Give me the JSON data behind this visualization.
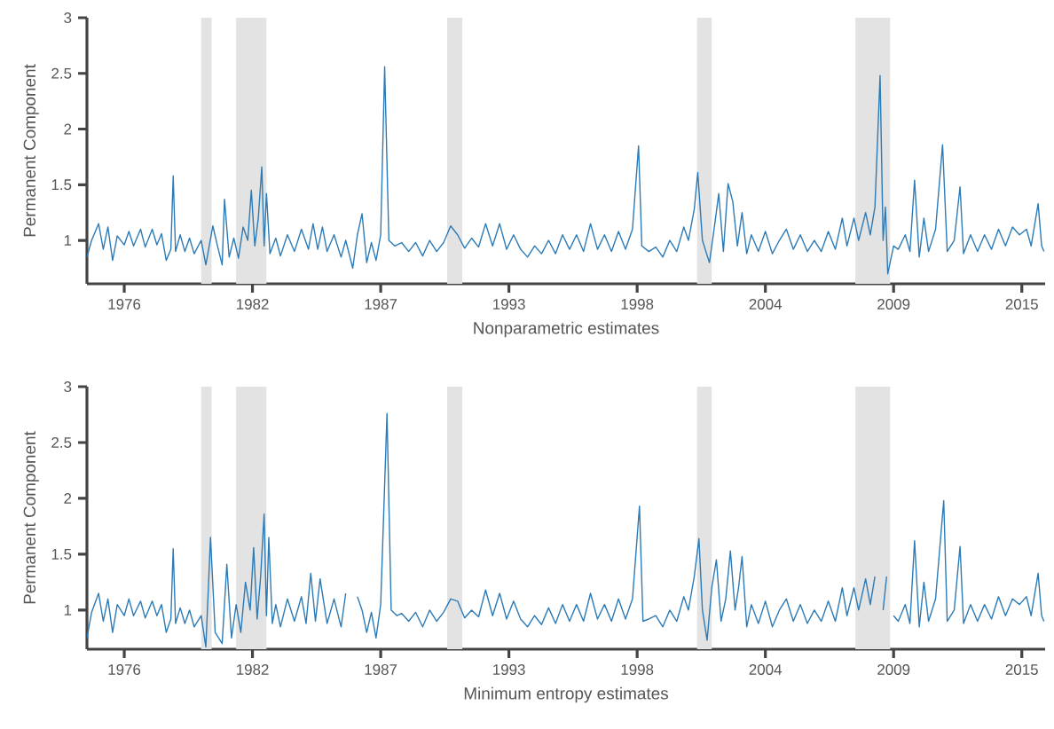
{
  "chart_data": [
    {
      "type": "line",
      "xlabel": "Nonparametric estimates",
      "ylabel": "Permanent Component",
      "xlim": [
        1974.4,
        2015.5
      ],
      "ylim": [
        0.61,
        3
      ],
      "xticks": [
        {
          "value": 1976,
          "label": "1976"
        },
        {
          "value": 1981.5,
          "label": "1982"
        },
        {
          "value": 1987,
          "label": "1987"
        },
        {
          "value": 1992.5,
          "label": "1993"
        },
        {
          "value": 1998,
          "label": "1998"
        },
        {
          "value": 2003.5,
          "label": "2004"
        },
        {
          "value": 2009,
          "label": "2009"
        },
        {
          "value": 2014.5,
          "label": "2015"
        }
      ],
      "yticks": [
        1,
        1.5,
        2,
        2.5,
        3
      ],
      "bands": [
        {
          "axis": "x",
          "from": 1979.3,
          "to": 1979.75,
          "color": "#e3e3e3"
        },
        {
          "axis": "x",
          "from": 1980.8,
          "to": 1982.1,
          "color": "#e3e3e3"
        },
        {
          "axis": "x",
          "from": 1989.85,
          "to": 1990.5,
          "color": "#e3e3e3"
        },
        {
          "axis": "x",
          "from": 2000.57,
          "to": 2001.2,
          "color": "#e3e3e3"
        },
        {
          "axis": "x",
          "from": 2007.36,
          "to": 2008.85,
          "color": "#e3e3e3"
        }
      ],
      "x": [
        1974.4,
        1974.6,
        1974.9,
        1975.1,
        1975.3,
        1975.5,
        1975.7,
        1976.0,
        1976.2,
        1976.4,
        1976.7,
        1976.9,
        1977.2,
        1977.4,
        1977.6,
        1977.8,
        1978.0,
        1978.1,
        1978.2,
        1978.4,
        1978.6,
        1978.8,
        1979.0,
        1979.3,
        1979.5,
        1979.8,
        1980.0,
        1980.2,
        1980.3,
        1980.5,
        1980.7,
        1980.9,
        1981.1,
        1981.3,
        1981.45,
        1981.6,
        1981.75,
        1981.9,
        1982.0,
        1982.1,
        1982.25,
        1982.5,
        1982.7,
        1983.0,
        1983.3,
        1983.6,
        1983.9,
        1984.1,
        1984.3,
        1984.5,
        1984.7,
        1985.0,
        1985.3,
        1985.5,
        1985.8,
        1986.0,
        1986.2,
        1986.4,
        1986.6,
        1986.8,
        1987.0,
        1987.17,
        1987.35,
        1987.6,
        1987.9,
        1988.2,
        1988.5,
        1988.8,
        1989.1,
        1989.4,
        1989.7,
        1990.0,
        1990.3,
        1990.6,
        1990.9,
        1991.2,
        1991.5,
        1991.8,
        1992.1,
        1992.4,
        1992.7,
        1993.0,
        1993.3,
        1993.6,
        1993.9,
        1994.2,
        1994.5,
        1994.8,
        1995.1,
        1995.4,
        1995.7,
        1996.0,
        1996.3,
        1996.6,
        1996.9,
        1997.2,
        1997.5,
        1997.8,
        1998.06,
        1998.2,
        1998.5,
        1998.8,
        1999.1,
        1999.4,
        1999.7,
        2000.0,
        2000.2,
        2000.45,
        2000.6,
        2000.8,
        2001.1,
        2001.3,
        2001.5,
        2001.7,
        2001.9,
        2002.1,
        2002.3,
        2002.5,
        2002.7,
        2002.9,
        2003.2,
        2003.5,
        2003.8,
        2004.1,
        2004.4,
        2004.7,
        2005.0,
        2005.3,
        2005.6,
        2005.9,
        2006.2,
        2006.5,
        2006.8,
        2007.0,
        2007.3,
        2007.5,
        2007.8,
        2008.0,
        2008.2,
        2008.42,
        2008.55,
        2008.65,
        2008.75,
        2009.0,
        2009.2,
        2009.5,
        2009.7,
        2009.9,
        2010.1,
        2010.3,
        2010.5,
        2010.8,
        2011.1,
        2011.3,
        2011.6,
        2011.85,
        2012.0,
        2012.3,
        2012.6,
        2012.9,
        2013.2,
        2013.5,
        2013.8,
        2014.1,
        2014.4,
        2014.7,
        2014.9,
        2015.2,
        2015.35,
        2015.45
      ],
      "series": [
        {
          "color": "#2c7bb6",
          "values": [
            0.85,
            1.0,
            1.15,
            0.92,
            1.12,
            0.82,
            1.04,
            0.96,
            1.08,
            0.95,
            1.1,
            0.94,
            1.1,
            0.96,
            1.06,
            0.82,
            0.92,
            1.58,
            0.9,
            1.05,
            0.9,
            1.02,
            0.88,
            1.0,
            0.78,
            1.13,
            0.95,
            0.78,
            1.37,
            0.85,
            1.02,
            0.84,
            1.12,
            1.0,
            1.45,
            0.95,
            1.2,
            1.66,
            0.95,
            1.42,
            0.88,
            1.02,
            0.86,
            1.05,
            0.9,
            1.1,
            0.92,
            1.15,
            0.92,
            1.12,
            0.9,
            1.05,
            0.85,
            1.0,
            0.75,
            1.05,
            1.24,
            0.8,
            0.98,
            0.82,
            1.05,
            2.56,
            1.0,
            0.95,
            0.98,
            0.9,
            0.98,
            0.86,
            1.0,
            0.9,
            0.98,
            1.13,
            1.05,
            0.93,
            1.02,
            0.94,
            1.15,
            0.95,
            1.15,
            0.92,
            1.05,
            0.92,
            0.85,
            0.95,
            0.88,
            1.0,
            0.88,
            1.05,
            0.92,
            1.05,
            0.9,
            1.15,
            0.92,
            1.05,
            0.9,
            1.08,
            0.92,
            1.1,
            1.85,
            0.95,
            0.9,
            0.94,
            0.85,
            1.0,
            0.9,
            1.12,
            1.0,
            1.28,
            1.61,
            1.0,
            0.8,
            1.1,
            1.42,
            0.9,
            1.51,
            1.35,
            0.95,
            1.25,
            0.88,
            1.05,
            0.9,
            1.08,
            0.88,
            1.0,
            1.1,
            0.92,
            1.05,
            0.9,
            1.0,
            0.9,
            1.08,
            0.92,
            1.2,
            0.95,
            1.2,
            1.0,
            1.25,
            1.05,
            1.3,
            2.48,
            1.0,
            1.3,
            0.7,
            0.95,
            0.92,
            1.05,
            0.9,
            1.54,
            0.85,
            1.2,
            0.9,
            1.1,
            1.86,
            0.9,
            1.0,
            1.48,
            0.88,
            1.05,
            0.9,
            1.05,
            0.92,
            1.1,
            0.95,
            1.12,
            1.05,
            1.1,
            0.95,
            1.33,
            0.95,
            0.9
          ]
        }
      ]
    },
    {
      "type": "line",
      "xlabel": "Minimum entropy estimates",
      "ylabel": "Permanent Component",
      "xlim": [
        1974.4,
        2015.5
      ],
      "ylim": [
        0.65,
        3
      ],
      "xticks": [
        {
          "value": 1976,
          "label": "1976"
        },
        {
          "value": 1981.5,
          "label": "1982"
        },
        {
          "value": 1987,
          "label": "1987"
        },
        {
          "value": 1992.5,
          "label": "1993"
        },
        {
          "value": 1998,
          "label": "1998"
        },
        {
          "value": 2003.5,
          "label": "2004"
        },
        {
          "value": 2009,
          "label": "2009"
        },
        {
          "value": 2014.5,
          "label": "2015"
        }
      ],
      "yticks": [
        1,
        1.5,
        2,
        2.5,
        3
      ],
      "bands": [
        {
          "axis": "x",
          "from": 1979.3,
          "to": 1979.75,
          "color": "#e3e3e3"
        },
        {
          "axis": "x",
          "from": 1980.8,
          "to": 1982.1,
          "color": "#e3e3e3"
        },
        {
          "axis": "x",
          "from": 1989.85,
          "to": 1990.5,
          "color": "#e3e3e3"
        },
        {
          "axis": "x",
          "from": 2000.57,
          "to": 2001.2,
          "color": "#e3e3e3"
        },
        {
          "axis": "x",
          "from": 2007.36,
          "to": 2008.85,
          "color": "#e3e3e3"
        }
      ],
      "x": [
        1974.4,
        1974.6,
        1974.9,
        1975.1,
        1975.3,
        1975.5,
        1975.7,
        1976.0,
        1976.2,
        1976.4,
        1976.7,
        1976.9,
        1977.2,
        1977.4,
        1977.6,
        1977.8,
        1978.0,
        1978.1,
        1978.2,
        1978.4,
        1978.6,
        1978.8,
        1979.0,
        1979.3,
        1979.5,
        1979.7,
        1979.9,
        1980.2,
        1980.4,
        1980.6,
        1980.8,
        1981.0,
        1981.2,
        1981.4,
        1981.55,
        1981.7,
        1981.85,
        1982.0,
        1982.1,
        1982.2,
        1982.35,
        1982.5,
        1982.7,
        1983.0,
        1983.3,
        1983.6,
        1983.8,
        1984.0,
        1984.2,
        1984.4,
        1984.7,
        1985.0,
        1985.3,
        1985.5,
        1985.8,
        1986.0,
        1986.2,
        1986.4,
        1986.6,
        1986.8,
        1987.0,
        1987.27,
        1987.45,
        1987.7,
        1987.9,
        1988.2,
        1988.5,
        1988.8,
        1989.1,
        1989.4,
        1989.7,
        1990.0,
        1990.3,
        1990.6,
        1990.9,
        1991.2,
        1991.5,
        1991.8,
        1992.1,
        1992.4,
        1992.7,
        1993.0,
        1993.3,
        1993.6,
        1993.9,
        1994.2,
        1994.5,
        1994.8,
        1995.1,
        1995.4,
        1995.7,
        1996.0,
        1996.3,
        1996.6,
        1996.9,
        1997.2,
        1997.5,
        1997.8,
        1998.1,
        1998.25,
        1998.5,
        1998.8,
        1999.1,
        1999.4,
        1999.7,
        2000.0,
        2000.2,
        2000.45,
        2000.65,
        2000.8,
        2001.0,
        2001.2,
        2001.4,
        2001.6,
        2001.8,
        2002.0,
        2002.2,
        2002.35,
        2002.5,
        2002.7,
        2002.9,
        2003.2,
        2003.5,
        2003.8,
        2004.1,
        2004.4,
        2004.7,
        2005.0,
        2005.3,
        2005.6,
        2005.9,
        2006.2,
        2006.5,
        2006.8,
        2007.0,
        2007.3,
        2007.5,
        2007.8,
        2008.0,
        2008.2,
        2008.42,
        2008.55,
        2008.7,
        2008.85,
        2009.0,
        2009.2,
        2009.5,
        2009.7,
        2009.9,
        2010.1,
        2010.3,
        2010.5,
        2010.8,
        2011.15,
        2011.3,
        2011.6,
        2011.85,
        2012.0,
        2012.3,
        2012.6,
        2012.9,
        2013.2,
        2013.5,
        2013.8,
        2014.1,
        2014.4,
        2014.7,
        2014.9,
        2015.2,
        2015.35,
        2015.45
      ],
      "series": [
        {
          "color": "#2c7bb6",
          "values": [
            0.75,
            0.98,
            1.15,
            0.9,
            1.1,
            0.8,
            1.05,
            0.95,
            1.1,
            0.95,
            1.08,
            0.93,
            1.08,
            0.95,
            1.05,
            0.8,
            0.92,
            1.55,
            0.88,
            1.02,
            0.88,
            1.0,
            0.85,
            0.95,
            0.67,
            1.65,
            0.8,
            0.7,
            1.41,
            0.75,
            1.05,
            0.8,
            1.25,
            1.0,
            1.56,
            0.92,
            1.3,
            1.86,
            0.95,
            1.65,
            0.88,
            1.05,
            0.85,
            1.1,
            0.9,
            1.12,
            0.88,
            1.33,
            0.9,
            1.28,
            0.88,
            1.1,
            0.85,
            1.15,
            null,
            1.12,
            1.0,
            0.8,
            0.98,
            0.75,
            1.05,
            2.76,
            1.0,
            0.95,
            0.97,
            0.9,
            0.98,
            0.85,
            1.0,
            0.9,
            0.98,
            1.1,
            1.08,
            0.93,
            1.0,
            0.94,
            1.18,
            0.95,
            1.15,
            0.92,
            1.08,
            0.92,
            0.85,
            0.95,
            0.87,
            1.02,
            0.88,
            1.05,
            0.9,
            1.05,
            0.9,
            1.15,
            0.92,
            1.05,
            0.9,
            1.1,
            0.92,
            1.1,
            1.93,
            0.9,
            0.92,
            0.95,
            0.85,
            1.0,
            0.9,
            1.12,
            1.0,
            1.3,
            1.64,
            1.0,
            0.73,
            1.2,
            1.45,
            0.9,
            1.1,
            1.53,
            1.0,
            1.2,
            1.48,
            0.85,
            1.05,
            0.88,
            1.08,
            0.85,
            1.0,
            1.1,
            0.9,
            1.05,
            0.88,
            1.0,
            0.9,
            1.08,
            0.9,
            1.2,
            0.95,
            1.2,
            1.0,
            1.28,
            1.05,
            1.3,
            null,
            1.0,
            1.3,
            null,
            0.95,
            0.9,
            1.05,
            0.88,
            1.62,
            0.85,
            1.25,
            0.9,
            1.1,
            1.98,
            0.9,
            1.0,
            1.57,
            0.88,
            1.05,
            0.9,
            1.05,
            0.92,
            1.12,
            0.95,
            1.1,
            1.05,
            1.12,
            0.95,
            1.33,
            0.95,
            0.9
          ]
        }
      ]
    }
  ]
}
